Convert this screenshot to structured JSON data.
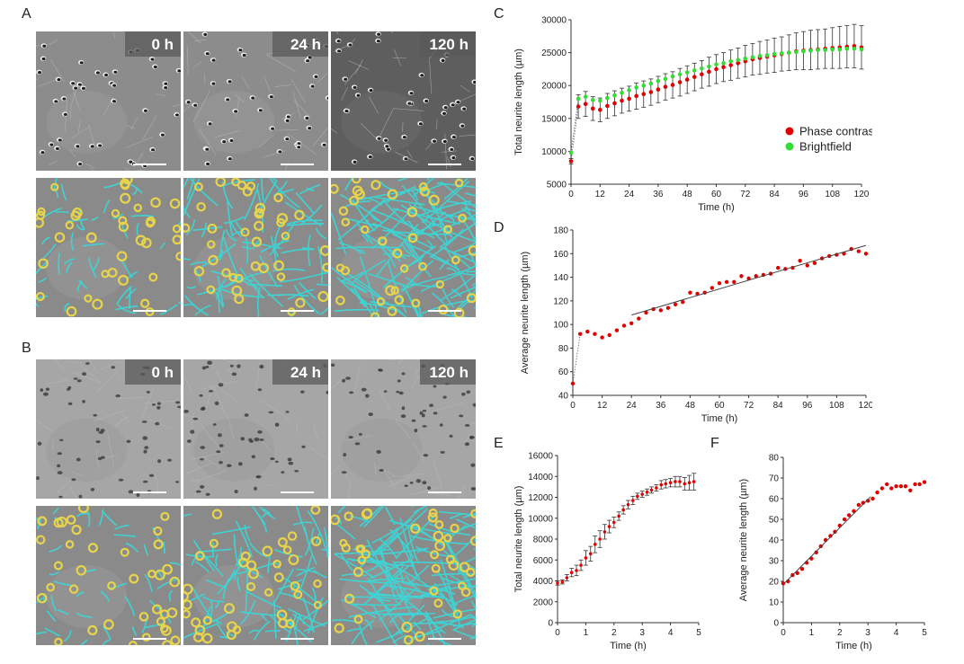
{
  "panels": {
    "A": "A",
    "B": "B",
    "C": "C",
    "D": "D",
    "E": "E",
    "F": "F"
  },
  "images": {
    "timepoints": [
      "0 h",
      "24 h",
      "120 h"
    ]
  },
  "colors": {
    "neurite_mask": "#3fd3d3",
    "cell_body_mask": "#e8d44a",
    "phase_contrast": "#e00000",
    "brightfield": "#33dd33",
    "fit_line": "#444444"
  },
  "chart_data": [
    {
      "id": "C",
      "type": "scatter",
      "xlabel": "Time (h)",
      "ylabel": "Total neurite length (µm)",
      "xlim": [
        0,
        120
      ],
      "ylim": [
        5000,
        30000
      ],
      "xticks": [
        0,
        12,
        24,
        36,
        48,
        60,
        72,
        84,
        96,
        108,
        120
      ],
      "yticks": [
        5000,
        10000,
        15000,
        20000,
        25000,
        30000
      ],
      "legend": [
        "Phase contrast",
        "Brightfield"
      ],
      "legend_position": "right",
      "series": [
        {
          "name": "Phase contrast",
          "x": [
            0,
            3,
            6,
            9,
            12,
            15,
            18,
            21,
            24,
            27,
            30,
            33,
            36,
            39,
            42,
            45,
            48,
            51,
            54,
            57,
            60,
            63,
            66,
            69,
            72,
            75,
            78,
            81,
            84,
            87,
            90,
            93,
            96,
            99,
            102,
            105,
            108,
            111,
            114,
            117,
            120
          ],
          "y": [
            8500,
            16800,
            17200,
            16500,
            16300,
            16900,
            17300,
            17700,
            18000,
            18400,
            18700,
            19000,
            19400,
            19800,
            20100,
            20500,
            20900,
            21300,
            21700,
            22100,
            22500,
            22800,
            23100,
            23400,
            23700,
            24000,
            24200,
            24400,
            24600,
            24800,
            25000,
            25200,
            25300,
            25400,
            25500,
            25600,
            25700,
            25800,
            25900,
            26000,
            25800
          ],
          "err": [
            400,
            1800,
            1900,
            1800,
            1800,
            1900,
            1900,
            1900,
            1900,
            2000,
            2000,
            2000,
            2000,
            2000,
            2000,
            2100,
            2100,
            2100,
            2100,
            2200,
            2200,
            2200,
            2300,
            2300,
            2400,
            2400,
            2500,
            2500,
            2600,
            2600,
            2700,
            2800,
            2900,
            3000,
            3000,
            3000,
            3100,
            3200,
            3200,
            3300,
            3300
          ]
        },
        {
          "name": "Brightfield",
          "x": [
            0,
            3,
            6,
            9,
            12,
            15,
            18,
            21,
            24,
            27,
            30,
            33,
            36,
            39,
            42,
            45,
            48,
            51,
            54,
            57,
            60,
            63,
            66,
            69,
            72,
            75,
            78,
            81,
            84,
            87,
            90,
            93,
            96,
            99,
            102,
            105,
            108,
            111,
            114,
            117,
            120
          ],
          "y": [
            9800,
            18000,
            18300,
            17800,
            17700,
            18100,
            18500,
            18900,
            19300,
            19700,
            20000,
            20300,
            20700,
            21000,
            21400,
            21700,
            22000,
            22300,
            22600,
            22900,
            23200,
            23400,
            23700,
            23900,
            24100,
            24300,
            24500,
            24600,
            24800,
            24900,
            25000,
            25100,
            25200,
            25300,
            25400,
            25400,
            25500,
            25500,
            25600,
            25600,
            25500
          ]
        }
      ]
    },
    {
      "id": "D",
      "type": "scatter",
      "xlabel": "Time (h)",
      "ylabel": "Average neurite length (µm)",
      "xlim": [
        0,
        120
      ],
      "ylim": [
        40,
        180
      ],
      "xticks": [
        0,
        12,
        24,
        36,
        48,
        60,
        72,
        84,
        96,
        108,
        120
      ],
      "yticks": [
        40,
        60,
        80,
        100,
        120,
        140,
        160,
        180
      ],
      "series": [
        {
          "name": "Average neurite length",
          "x": [
            0,
            3,
            6,
            9,
            12,
            15,
            18,
            21,
            24,
            27,
            30,
            33,
            36,
            39,
            42,
            45,
            48,
            51,
            54,
            57,
            60,
            63,
            66,
            69,
            72,
            75,
            78,
            81,
            84,
            87,
            90,
            93,
            96,
            99,
            102,
            105,
            108,
            111,
            114,
            117,
            120
          ],
          "y": [
            50,
            92,
            94,
            92,
            89,
            91,
            95,
            99,
            101,
            105,
            110,
            113,
            112,
            114,
            117,
            119,
            127,
            126,
            127,
            131,
            135,
            136,
            136,
            141,
            139,
            141,
            142,
            143,
            148,
            147,
            148,
            154,
            150,
            152,
            156,
            158,
            159,
            160,
            164,
            162,
            160
          ]
        }
      ],
      "fit": {
        "x": [
          24,
          120
        ],
        "y": [
          108,
          167
        ]
      }
    },
    {
      "id": "E",
      "type": "scatter",
      "xlabel": "Time (h)",
      "ylabel": "Total neurite length (µm)",
      "xlim": [
        0,
        5
      ],
      "ylim": [
        0,
        16000
      ],
      "xticks": [
        0,
        1,
        2,
        3,
        4,
        5
      ],
      "yticks": [
        0,
        2000,
        4000,
        6000,
        8000,
        10000,
        12000,
        14000,
        16000
      ],
      "series": [
        {
          "name": "Total neurite length",
          "x": [
            0,
            0.17,
            0.33,
            0.5,
            0.67,
            0.83,
            1.0,
            1.17,
            1.33,
            1.5,
            1.67,
            1.83,
            2.0,
            2.17,
            2.33,
            2.5,
            2.67,
            2.83,
            3.0,
            3.17,
            3.33,
            3.5,
            3.67,
            3.83,
            4.0,
            4.17,
            4.33,
            4.5,
            4.67,
            4.83
          ],
          "y": [
            3800,
            3900,
            4300,
            4800,
            5000,
            5500,
            6200,
            6600,
            7500,
            8000,
            8700,
            9200,
            9600,
            10200,
            10800,
            11300,
            11700,
            12100,
            12300,
            12500,
            12700,
            12900,
            13200,
            13300,
            13400,
            13500,
            13500,
            13300,
            13400,
            13500
          ],
          "err": [
            200,
            200,
            300,
            400,
            500,
            500,
            700,
            700,
            800,
            800,
            700,
            600,
            500,
            400,
            400,
            400,
            400,
            300,
            300,
            300,
            300,
            300,
            400,
            400,
            400,
            500,
            500,
            600,
            700,
            800
          ]
        }
      ]
    },
    {
      "id": "F",
      "type": "scatter",
      "xlabel": "Time (h)",
      "ylabel": "Average neurite length (µm)",
      "xlim": [
        0,
        5
      ],
      "ylim": [
        0,
        80
      ],
      "xticks": [
        0,
        1,
        2,
        3,
        4,
        5
      ],
      "yticks": [
        0,
        10,
        20,
        30,
        40,
        50,
        60,
        70,
        80
      ],
      "series": [
        {
          "name": "Average neurite length",
          "x": [
            0,
            0.17,
            0.33,
            0.5,
            0.67,
            0.83,
            1.0,
            1.17,
            1.33,
            1.5,
            1.67,
            1.83,
            2.0,
            2.17,
            2.33,
            2.5,
            2.67,
            2.83,
            3.0,
            3.17,
            3.33,
            3.5,
            3.67,
            3.83,
            4.0,
            4.17,
            4.33,
            4.5,
            4.67,
            4.83,
            5.0
          ],
          "y": [
            19,
            20,
            23,
            24,
            26,
            29,
            31,
            34,
            37,
            40,
            42,
            44,
            47,
            50,
            52,
            54,
            57,
            58,
            59,
            60,
            63,
            65,
            67,
            65,
            66,
            66,
            66,
            64,
            67,
            67,
            68
          ]
        }
      ],
      "fit": {
        "x": [
          0,
          3.1
        ],
        "y": [
          18.5,
          61
        ]
      }
    }
  ]
}
